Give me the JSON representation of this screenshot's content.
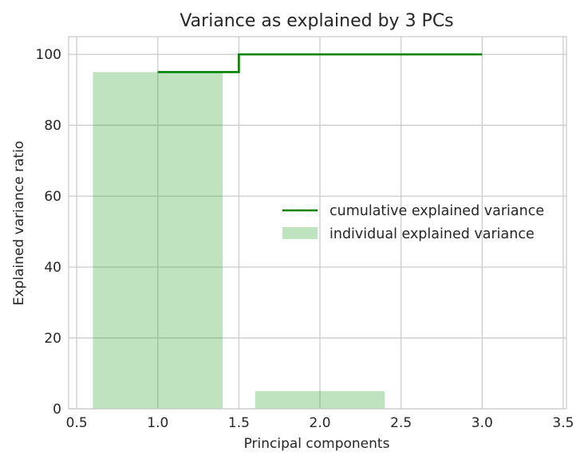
{
  "chart_data": {
    "type": "bar",
    "title": "Variance as explained by 3 PCs",
    "xlabel": "Principal components",
    "ylabel": "Explained variance ratio",
    "xlim": [
      0.45,
      3.52
    ],
    "ylim": [
      0,
      105
    ],
    "xticks": [
      0.5,
      1.0,
      1.5,
      2.0,
      2.5,
      3.0,
      3.5
    ],
    "xtick_labels": [
      "0.5",
      "1.0",
      "1.5",
      "2.0",
      "2.5",
      "3.0",
      "3.5"
    ],
    "yticks": [
      0,
      20,
      40,
      60,
      80,
      100
    ],
    "ytick_labels": [
      "0",
      "20",
      "40",
      "60",
      "80",
      "100"
    ],
    "grid": true,
    "legend_position": "center-right",
    "bars": {
      "name": "individual explained variance",
      "x": [
        1,
        2,
        3
      ],
      "values": [
        95.0,
        5.0,
        0.0
      ],
      "width": 0.8,
      "color": "#2ca02c",
      "alpha": 0.3
    },
    "cumulative": {
      "name": "cumulative explained variance",
      "x": [
        1,
        2,
        3
      ],
      "values": [
        95.0,
        100.0,
        100.0
      ],
      "drawstyle": "steps-mid",
      "color": "#008000"
    }
  }
}
